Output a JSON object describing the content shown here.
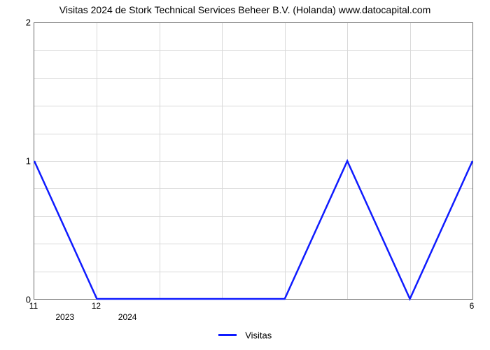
{
  "chart": {
    "type": "line",
    "title": "Visitas 2024 de Stork Technical Services Beheer B.V. (Holanda) www.datocapital.com",
    "title_fontsize": 14,
    "background_color": "#ffffff",
    "plot_border_color": "#6a6a6a",
    "grid_color": "#d9d9d9",
    "grid_minor_divisions_y": 5,
    "y": {
      "min": 0,
      "max": 2,
      "ticks": [
        0,
        1,
        2
      ],
      "tick_fontsize": 13,
      "tick_color": "#000000"
    },
    "x": {
      "n_points": 8,
      "visible_tick_labels": [
        {
          "index": 0,
          "label": "11"
        },
        {
          "index": 1,
          "label": "12"
        },
        {
          "index": 7,
          "label": "6"
        }
      ],
      "year_labels": [
        {
          "between_index": 0.5,
          "label": "2023"
        },
        {
          "between_index": 1.5,
          "label": "2024"
        }
      ],
      "tick_fontsize": 12,
      "tick_color": "#000000"
    },
    "series": {
      "name": "Visitas",
      "color": "#0f1bff",
      "line_width": 2.5,
      "values": [
        1,
        0,
        0,
        0,
        0,
        1,
        0,
        1
      ]
    },
    "legend": {
      "label": "Visitas",
      "line_color": "#0f1bff",
      "fontsize": 13
    }
  }
}
